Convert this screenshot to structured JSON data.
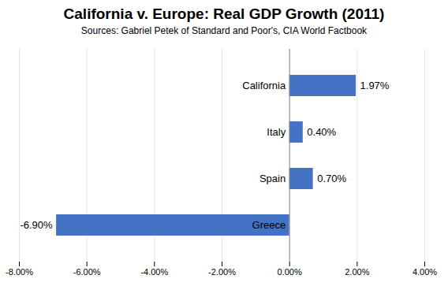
{
  "chart_data": {
    "type": "bar",
    "orientation": "horizontal",
    "title": "California v. Europe: Real GDP Growth (2011)",
    "subtitle": "Sources: Gabriel Petek of Standard and Poor's, CIA World Factbook",
    "categories": [
      "California",
      "Italy",
      "Spain",
      "Greece"
    ],
    "values": [
      1.97,
      0.4,
      0.7,
      -6.9
    ],
    "value_labels": [
      "1.97%",
      "0.40%",
      "0.70%",
      "-6.90%"
    ],
    "color": "#4472C4",
    "xlim": [
      -8.0,
      4.0
    ],
    "xticks": [
      {
        "value": -8.0,
        "label": "-8.00%"
      },
      {
        "value": -6.0,
        "label": "-6.00%"
      },
      {
        "value": -4.0,
        "label": "-4.00%"
      },
      {
        "value": -2.0,
        "label": "-2.00%"
      },
      {
        "value": 0.0,
        "label": "0.00%"
      },
      {
        "value": 2.0,
        "label": "2.00%"
      },
      {
        "value": 4.0,
        "label": "4.00%"
      }
    ],
    "grid": true,
    "data_labels": true,
    "tick_labels": "x"
  }
}
